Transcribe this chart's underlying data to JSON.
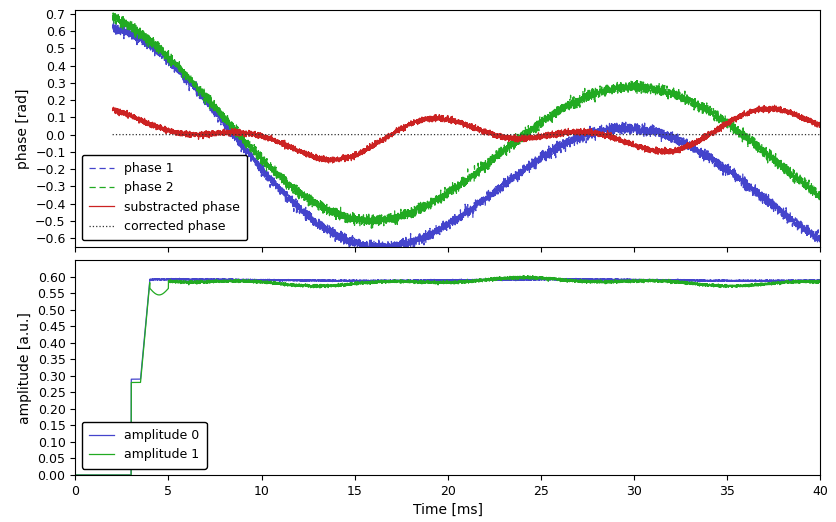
{
  "phase_ylabel": "phase [rad]",
  "amp_ylabel": "amplitude [a.u.]",
  "xlabel": "Time [ms]",
  "xlim": [
    0,
    40
  ],
  "phase_ylim": [
    -0.65,
    0.72
  ],
  "phase_yticks": [
    -0.6,
    -0.5,
    -0.4,
    -0.3,
    -0.2,
    -0.1,
    0.0,
    0.1,
    0.2,
    0.3,
    0.4,
    0.5,
    0.6,
    0.7
  ],
  "amp_ylim": [
    0.0,
    0.65
  ],
  "amp_yticks": [
    0.0,
    0.05,
    0.1,
    0.15,
    0.2,
    0.25,
    0.3,
    0.35,
    0.4,
    0.45,
    0.5,
    0.55,
    0.6
  ],
  "xticks": [
    0,
    5,
    10,
    15,
    20,
    25,
    30,
    35,
    40
  ],
  "color_phase1": "#4444cc",
  "color_phase2": "#22aa22",
  "color_substracted": "#cc2222",
  "color_corrected": "#333333",
  "color_amp0": "#4444cc",
  "color_amp1": "#22aa22",
  "background_color": "#ffffff",
  "font_size": 10
}
